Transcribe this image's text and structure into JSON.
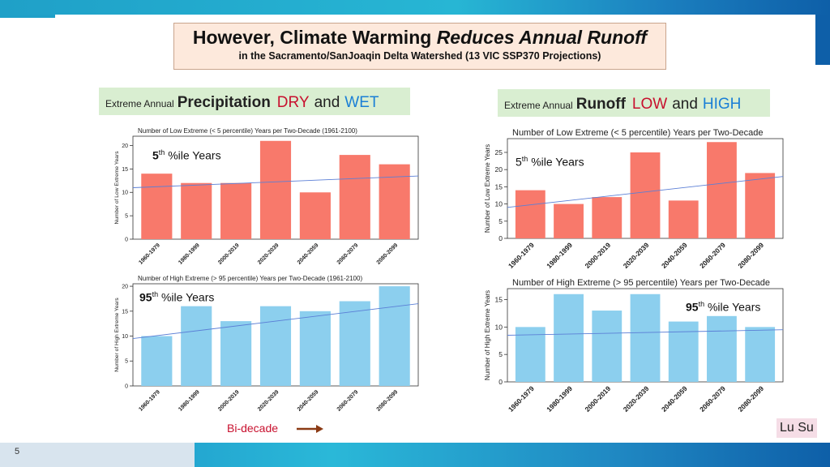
{
  "slide": {
    "title_part1": "However, Climate Warming ",
    "title_italic": "Reduces Annual Runoff",
    "subtitle": "in the Sacramento/SanJoaqin Delta Watershed (13 VIC SSP370 Projections)",
    "slide_number": "5",
    "author": "Lu Su",
    "axis_note": "Bi-decade"
  },
  "panels": {
    "left": {
      "small": "Extreme Annual",
      "big": "Precipitation",
      "low": "DRY",
      "and": "and",
      "high": "WET"
    },
    "right": {
      "small": "Extreme Annual",
      "big": "Runoff",
      "low": "LOW",
      "and": "and",
      "high": "HIGH"
    }
  },
  "annotations": {
    "p_low": {
      "num": "5",
      "sup": "th",
      "text": " %ile Years"
    },
    "p_high": {
      "num": "95",
      "sup": "th",
      "text": " %ile Years"
    },
    "r_low": {
      "num": "5",
      "sup": "th",
      "text": " %ile Years"
    },
    "r_high": {
      "num": "95",
      "sup": "th",
      "text": " %ile Years"
    }
  },
  "colors": {
    "low_bar": "#f8796b",
    "high_bar": "#8ccfee",
    "trend": "#5b7fd6",
    "title_bg": "#fde9dc",
    "label_bg": "#d9eed1"
  },
  "chart_data": [
    {
      "id": "p_low",
      "type": "bar",
      "title": "Number of Low Extreme (< 5 percentile) Years per Two-Decade (1961-2100)",
      "ylabel": "Number of Low Extreme Years",
      "categories": [
        "1960-1979",
        "1980-1999",
        "2000-2019",
        "2020-2039",
        "2040-2059",
        "2060-2079",
        "2080-2099"
      ],
      "values": [
        14,
        12,
        12,
        21,
        10,
        18,
        16
      ],
      "ylim": [
        0,
        22
      ],
      "yticks": [
        0,
        5,
        10,
        15,
        20
      ],
      "trend": [
        11,
        13.5
      ],
      "color": "low"
    },
    {
      "id": "p_high",
      "type": "bar",
      "title": "Number of High Extreme (> 95 percentile) Years per Two-Decade (1961-2100)",
      "ylabel": "Number of High Extreme Years",
      "categories": [
        "1960-1979",
        "1980-1999",
        "2000-2019",
        "2020-2039",
        "2040-2059",
        "2060-2079",
        "2080-2099"
      ],
      "values": [
        10,
        16,
        13,
        16,
        15,
        17,
        20
      ],
      "ylim": [
        0,
        20.5
      ],
      "yticks": [
        0,
        5,
        10,
        15,
        20
      ],
      "trend": [
        9.5,
        16.5
      ],
      "color": "high"
    },
    {
      "id": "r_low",
      "type": "bar",
      "title": "Number of Low Extreme (< 5 percentile) Years per Two-Decade",
      "ylabel": "Number of Low Extreme Years",
      "categories": [
        "1960-1979",
        "1980-1999",
        "2000-2019",
        "2020-2039",
        "2040-2059",
        "2060-2079",
        "2080-2099"
      ],
      "values": [
        14,
        10,
        12,
        25,
        11,
        28,
        19
      ],
      "ylim": [
        0,
        29
      ],
      "yticks": [
        0,
        5,
        10,
        15,
        20,
        25
      ],
      "trend": [
        9,
        18
      ],
      "color": "low"
    },
    {
      "id": "r_high",
      "type": "bar",
      "title": "Number of High Extreme (> 95 percentile) Years per Two-Decade",
      "ylabel": "Number of High Extreme Years",
      "categories": [
        "1960-1979",
        "1980-1999",
        "2000-2019",
        "2020-2039",
        "2040-2059",
        "2060-2079",
        "2080-2099"
      ],
      "values": [
        10,
        16,
        13,
        16,
        11,
        12,
        10
      ],
      "ylim": [
        0,
        17
      ],
      "yticks": [
        0,
        5,
        10,
        15
      ],
      "trend": [
        8.5,
        9.5
      ],
      "color": "high"
    }
  ]
}
